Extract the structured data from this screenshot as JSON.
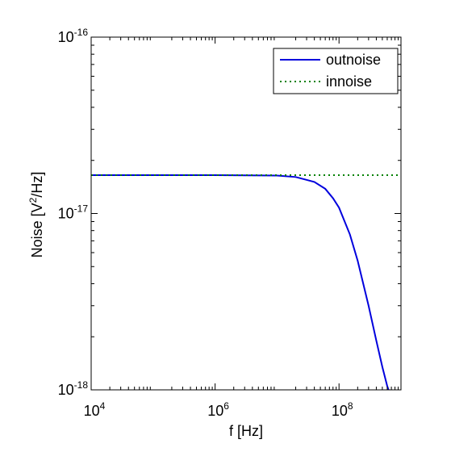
{
  "chart_data": {
    "type": "line",
    "title": "",
    "xlabel": "f [Hz]",
    "ylabel": "Noise  [V²/Hz]",
    "ylabel_parts": {
      "base": "Noise  [V",
      "exp": "2",
      "rest": "/Hz]"
    },
    "xscale": "log",
    "yscale": "log",
    "xlim": [
      10000,
      1000000000
    ],
    "ylim": [
      1e-18,
      1e-16
    ],
    "grid": false,
    "legend_position": "top-right",
    "x_ticks": [
      {
        "value": 10000,
        "base": "10",
        "exp": "4"
      },
      {
        "value": 1000000,
        "base": "10",
        "exp": "6"
      },
      {
        "value": 100000000,
        "base": "10",
        "exp": "8"
      }
    ],
    "y_ticks": [
      {
        "value": 1e-18,
        "base": "10",
        "exp": "-18"
      },
      {
        "value": 1e-17,
        "base": "10",
        "exp": "-17"
      },
      {
        "value": 1e-16,
        "base": "10",
        "exp": "-16"
      }
    ],
    "series": [
      {
        "name": "outnoise",
        "color": "#0000dd",
        "style": "solid",
        "x": [
          10000,
          1000000,
          10000000,
          20000000,
          40000000,
          60000000,
          80000000,
          100000000,
          150000000,
          200000000,
          300000000,
          400000000,
          500000000,
          600000000,
          630000000
        ],
        "y": [
          1.65e-17,
          1.65e-17,
          1.64e-17,
          1.61e-17,
          1.51e-17,
          1.38e-17,
          1.22e-17,
          1.08e-17,
          7.6e-18,
          5.4e-18,
          3e-18,
          1.9e-18,
          1.35e-18,
          1.05e-18,
          1e-18
        ]
      },
      {
        "name": "innoise",
        "color": "#008000",
        "style": "dotted",
        "x": [
          10000,
          1000000000
        ],
        "y": [
          1.65e-17,
          1.65e-17
        ]
      }
    ]
  }
}
